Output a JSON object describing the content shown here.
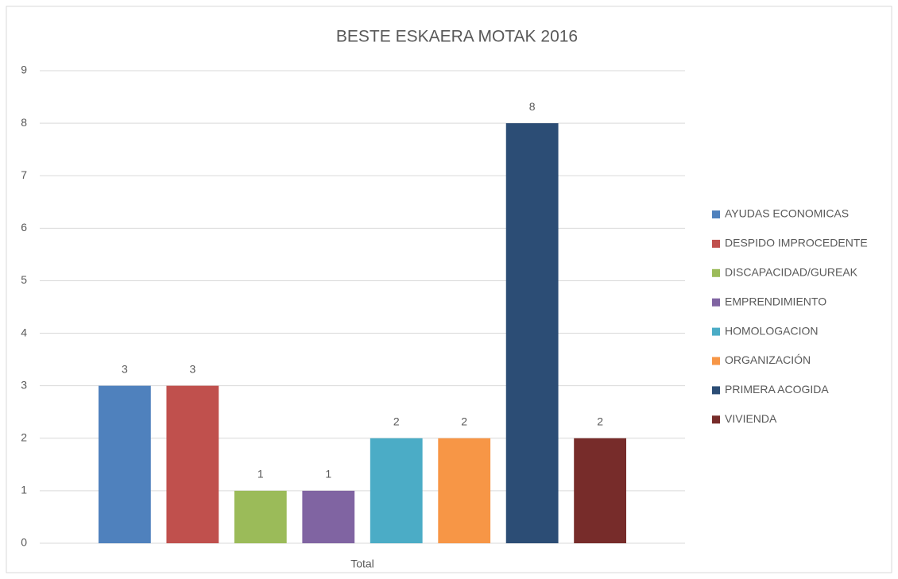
{
  "chart_data": {
    "type": "bar",
    "title": "BESTE ESKAERA MOTAK 2016",
    "categories": [
      "Total"
    ],
    "series": [
      {
        "name": "AYUDAS ECONOMICAS",
        "color": "#4f81bd",
        "values": [
          3
        ]
      },
      {
        "name": "DESPIDO IMPROCEDENTE",
        "color": "#c0504d",
        "values": [
          3
        ]
      },
      {
        "name": "DISCAPACIDAD/GUREAK",
        "color": "#9bbb59",
        "values": [
          1
        ]
      },
      {
        "name": "EMPRENDIMIENTO",
        "color": "#8064a2",
        "values": [
          1
        ]
      },
      {
        "name": "HOMOLOGACION",
        "color": "#4bacc6",
        "values": [
          2
        ]
      },
      {
        "name": "ORGANIZACIÓN",
        "color": "#f79646",
        "values": [
          2
        ]
      },
      {
        "name": "PRIMERA ACOGIDA",
        "color": "#2c4d75",
        "values": [
          8
        ]
      },
      {
        "name": "VIVIENDA",
        "color": "#772c2a",
        "values": [
          2
        ]
      }
    ],
    "ylim": [
      0,
      9
    ],
    "yticks": [
      0,
      1,
      2,
      3,
      4,
      5,
      6,
      7,
      8,
      9
    ],
    "grid": true,
    "legend": "right",
    "data_labels": true
  }
}
